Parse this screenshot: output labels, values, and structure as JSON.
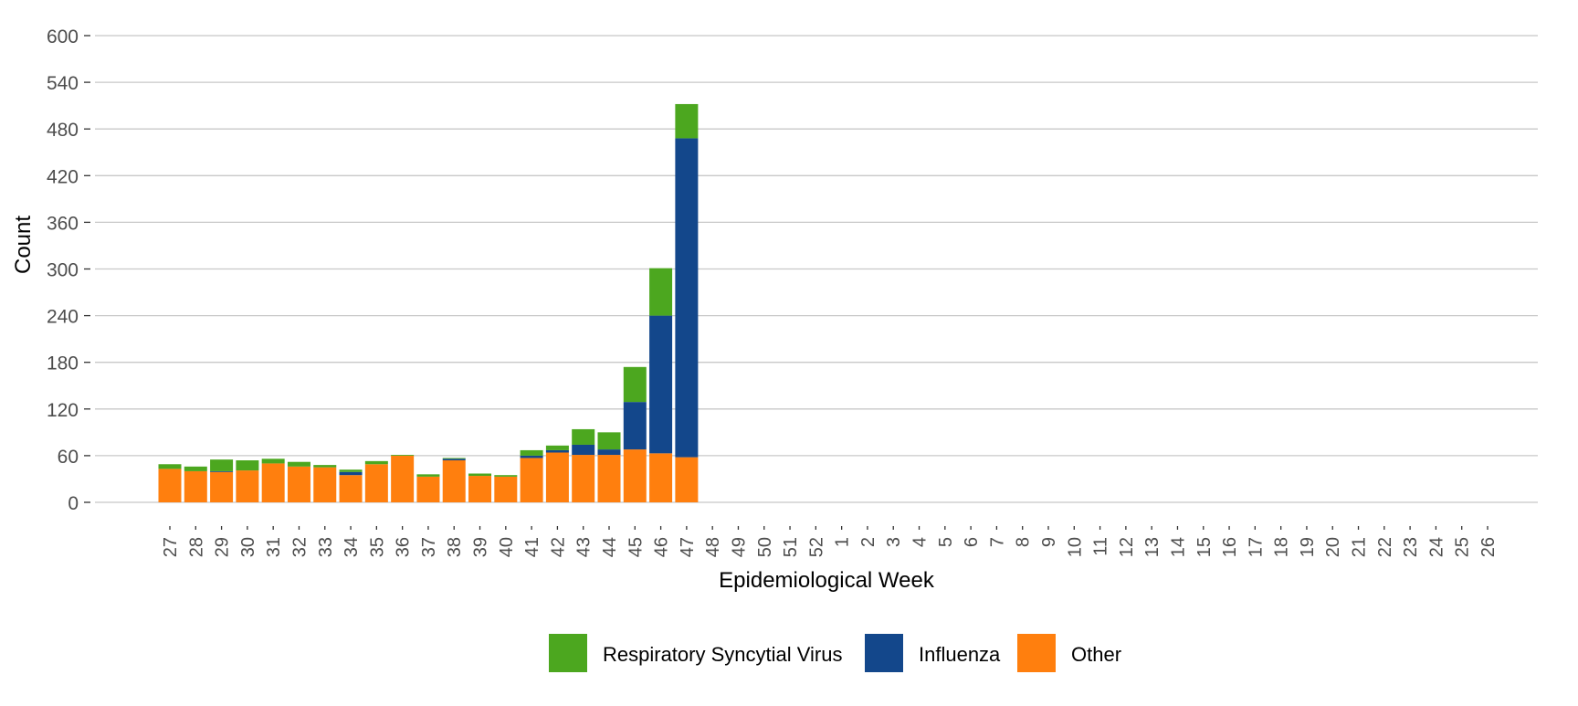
{
  "chart_data": {
    "type": "bar",
    "stacked": true,
    "xlabel": "Epidemiological Week",
    "ylabel": "Count",
    "ylim": [
      0,
      600
    ],
    "yticks": [
      0,
      60,
      120,
      180,
      240,
      300,
      360,
      420,
      480,
      540,
      600
    ],
    "grid": "horizontal",
    "legend_position": "bottom",
    "categories": [
      "27",
      "28",
      "29",
      "30",
      "31",
      "32",
      "33",
      "34",
      "35",
      "36",
      "37",
      "38",
      "39",
      "40",
      "41",
      "42",
      "43",
      "44",
      "45",
      "46",
      "47",
      "48",
      "49",
      "50",
      "51",
      "52",
      "1",
      "2",
      "3",
      "4",
      "5",
      "6",
      "7",
      "8",
      "9",
      "10",
      "11",
      "12",
      "13",
      "14",
      "15",
      "16",
      "17",
      "18",
      "19",
      "20",
      "21",
      "22",
      "23",
      "24",
      "25",
      "26"
    ],
    "series": [
      {
        "name": "Other",
        "color": "#FF7F0E",
        "values": [
          43,
          40,
          39,
          41,
          50,
          46,
          45,
          35,
          49,
          60,
          33,
          54,
          34,
          33,
          57,
          64,
          61,
          61,
          68,
          63,
          58,
          null,
          null,
          null,
          null,
          null,
          null,
          null,
          null,
          null,
          null,
          null,
          null,
          null,
          null,
          null,
          null,
          null,
          null,
          null,
          null,
          null,
          null,
          null,
          null,
          null,
          null,
          null,
          null,
          null,
          null,
          null
        ]
      },
      {
        "name": "Influenza",
        "color": "#13478B",
        "values": [
          0,
          0,
          1,
          0,
          0,
          0,
          0,
          4,
          0,
          0,
          0,
          2,
          0,
          0,
          3,
          3,
          13,
          7,
          61,
          177,
          410,
          null,
          null,
          null,
          null,
          null,
          null,
          null,
          null,
          null,
          null,
          null,
          null,
          null,
          null,
          null,
          null,
          null,
          null,
          null,
          null,
          null,
          null,
          null,
          null,
          null,
          null,
          null,
          null,
          null,
          null,
          null
        ]
      },
      {
        "name": "Respiratory Syncytial Virus",
        "color": "#4CA71F",
        "values": [
          6,
          6,
          15,
          13,
          6,
          6,
          3,
          3,
          4,
          1,
          3,
          1,
          3,
          2,
          7,
          6,
          20,
          22,
          45,
          61,
          44,
          null,
          null,
          null,
          null,
          null,
          null,
          null,
          null,
          null,
          null,
          null,
          null,
          null,
          null,
          null,
          null,
          null,
          null,
          null,
          null,
          null,
          null,
          null,
          null,
          null,
          null,
          null,
          null,
          null,
          null,
          null
        ]
      }
    ],
    "legend": [
      "Respiratory Syncytial Virus",
      "Influenza",
      "Other"
    ]
  }
}
